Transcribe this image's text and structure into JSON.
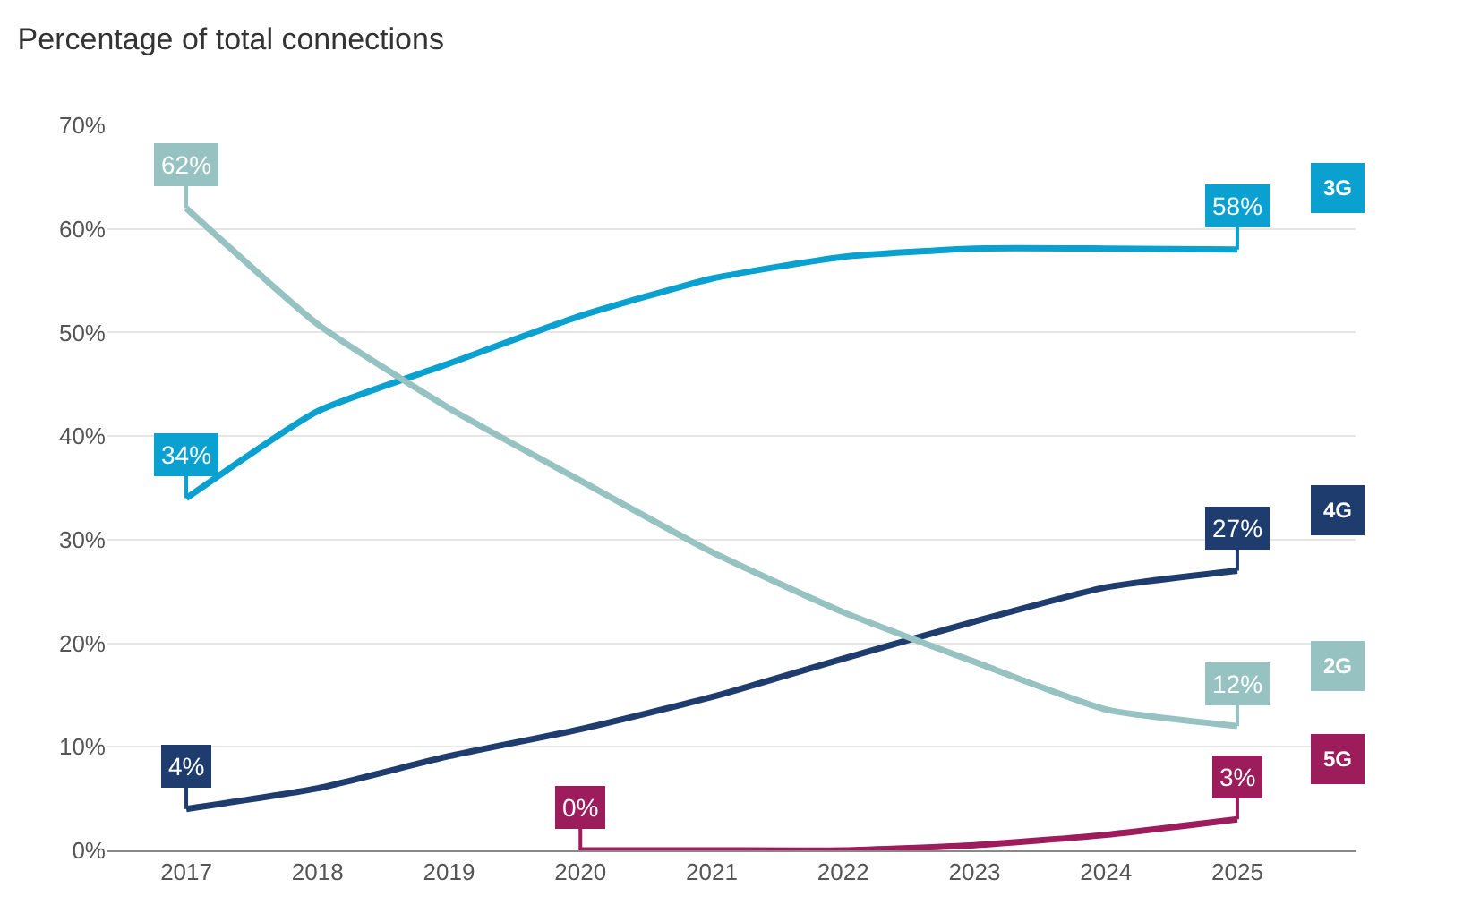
{
  "chart_data": {
    "type": "line",
    "title": "Percentage of total connections",
    "categories": [
      "2017",
      "2018",
      "2019",
      "2020",
      "2021",
      "2022",
      "2023",
      "2024",
      "2025"
    ],
    "series": [
      {
        "name": "3G",
        "color": "#0aa0d0",
        "values": [
          34,
          42.4,
          47,
          51.6,
          55.2,
          57.3,
          58.1,
          58.1,
          58
        ],
        "value_labels": [
          "34%",
          null,
          null,
          null,
          null,
          null,
          null,
          null,
          "58%"
        ]
      },
      {
        "name": "4G",
        "color": "#1e3d6e",
        "values": [
          4,
          6,
          9.1,
          11.7,
          14.8,
          18.5,
          22.1,
          25.4,
          27
        ],
        "value_labels": [
          "4%",
          null,
          null,
          null,
          null,
          null,
          null,
          null,
          "27%"
        ]
      },
      {
        "name": "2G",
        "color": "#96c3c1",
        "values": [
          62,
          50.8,
          42.7,
          35.7,
          28.8,
          23,
          18.2,
          13.6,
          12
        ],
        "value_labels": [
          "62%",
          null,
          null,
          null,
          null,
          null,
          null,
          null,
          "12%"
        ]
      },
      {
        "name": "5G",
        "color": "#9c1c5c",
        "values": [
          null,
          null,
          null,
          0,
          0,
          0,
          0.5,
          1.5,
          3
        ],
        "value_labels": [
          null,
          null,
          null,
          "0%",
          null,
          null,
          null,
          null,
          "3%"
        ]
      }
    ],
    "ylim": [
      0,
      70
    ],
    "yticks": [
      {
        "value": 0,
        "label": "0%"
      },
      {
        "value": 10,
        "label": "10%"
      },
      {
        "value": 20,
        "label": "20%"
      },
      {
        "value": 30,
        "label": "30%"
      },
      {
        "value": 40,
        "label": "40%"
      },
      {
        "value": 50,
        "label": "50%"
      },
      {
        "value": 60,
        "label": "60%"
      },
      {
        "value": 70,
        "label": "70%"
      }
    ],
    "grid": "y",
    "legend": false,
    "marker": "none",
    "line_style": "solid"
  }
}
